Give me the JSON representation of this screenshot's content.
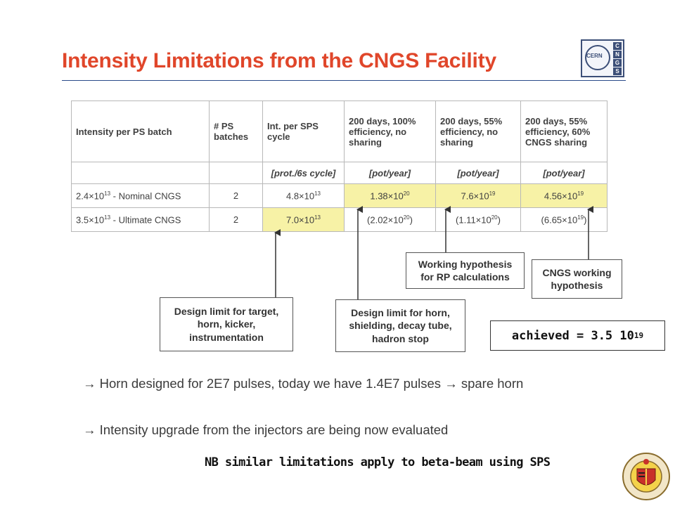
{
  "title": "Intensity Limitations from the CNGS Facility",
  "logo": {
    "cern": "CERN",
    "cngs": [
      "C",
      "N",
      "G",
      "S"
    ]
  },
  "table": {
    "headers": [
      "Intensity per PS batch",
      "# PS batches",
      "Int. per SPS cycle",
      "200 days, 100% efficiency, no sharing",
      "200 days, 55% efficiency, no sharing",
      "200 days, 55% efficiency, 60% CNGS sharing"
    ],
    "units": [
      "",
      "",
      "[prot./6s cycle]",
      "[pot/year]",
      "[pot/year]",
      "[pot/year]"
    ],
    "rows": [
      [
        {
          "b": "2.4×10",
          "e": "13",
          "a": " - Nominal CNGS"
        },
        {
          "b": "2"
        },
        {
          "b": "4.8×10",
          "e": "13"
        },
        {
          "b": "1.38×10",
          "e": "20",
          "hl": true
        },
        {
          "b": "7.6×10",
          "e": "19",
          "hl": true
        },
        {
          "b": "4.56×10",
          "e": "19",
          "hl": true
        }
      ],
      [
        {
          "b": "3.5×10",
          "e": "13",
          "a": " - Ultimate CNGS"
        },
        {
          "b": "2"
        },
        {
          "b": "7.0×10",
          "e": "13",
          "hl": true
        },
        {
          "b": "(2.02×10",
          "e": "20",
          "a": ")"
        },
        {
          "b": "(1.11×10",
          "e": "20",
          "a": ")"
        },
        {
          "b": "(6.65×10",
          "e": "19",
          "a": ")"
        }
      ]
    ]
  },
  "callouts": {
    "target": [
      "Design limit for target,",
      "horn, kicker,",
      "instrumentation"
    ],
    "horn": [
      "Design limit for horn,",
      "shielding, decay tube,",
      "hadron stop"
    ],
    "working": [
      "Working hypothesis",
      "for RP calculations"
    ],
    "cngs": [
      "CNGS working",
      "hypothesis"
    ]
  },
  "achieved": {
    "text": "achieved = 3.5 10",
    "exp": "19"
  },
  "bullets": [
    {
      "arrow": "→",
      "text": " Horn designed for 2E7 pulses, today we have 1.4E7 pulses ",
      "arrow2": "→",
      "text2": " spare horn"
    },
    {
      "arrow": "→",
      "text": " Intensity upgrade from the injectors are being now evaluated"
    }
  ],
  "note": "NB similar limitations apply to beta-beam using SPS",
  "colors": {
    "title": "#e0462a",
    "highlight": "#f7f2a6",
    "rule": "#2a4a8a"
  },
  "icons": [
    "cern-cngs-logo",
    "university-seal"
  ]
}
